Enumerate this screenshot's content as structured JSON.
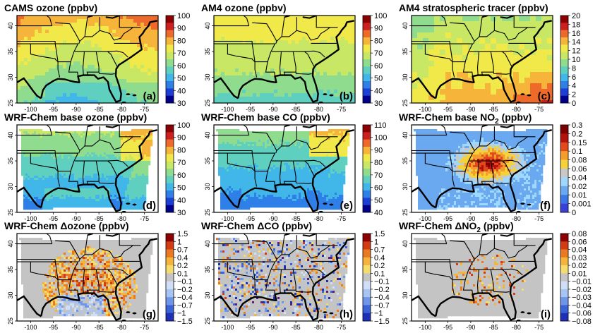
{
  "panels": [
    {
      "id": "a",
      "title": "CAMS ozone (ppbv)",
      "label": "(a)",
      "scheme": "rainbow",
      "field": "ozone_cams",
      "colorbar": {
        "ticks": [
          "100",
          "90",
          "80",
          "70",
          "60",
          "50",
          "40",
          "30"
        ]
      },
      "lon_ticks": [
        "-100",
        "-95",
        "-90",
        "-85",
        "-80",
        "-75"
      ],
      "lat_ticks": [
        "40",
        "35",
        "30",
        "25"
      ]
    },
    {
      "id": "b",
      "title": "AM4 ozone (ppbv)",
      "label": "(b)",
      "scheme": "rainbow",
      "field": "ozone_am4",
      "colorbar": {
        "ticks": [
          "100",
          "90",
          "80",
          "70",
          "60",
          "50",
          "40",
          "30"
        ]
      },
      "lon_ticks": [
        "-100",
        "-95",
        "-90",
        "-85",
        "-80",
        "-75"
      ],
      "lat_ticks": [
        "40",
        "35",
        "30",
        "25"
      ]
    },
    {
      "id": "c",
      "title": "AM4 stratospheric tracer (ppbv)",
      "label": "(c)",
      "scheme": "rainbow",
      "field": "strat",
      "colorbar": {
        "ticks": [
          "20",
          "18",
          "16",
          "14",
          "12",
          "10",
          "8",
          "6",
          "4",
          "2",
          "0"
        ]
      },
      "lon_ticks": [
        "-100",
        "-95",
        "-90",
        "-85",
        "-80",
        "-75"
      ],
      "lat_ticks": [
        "40",
        "35",
        "30",
        "25"
      ]
    },
    {
      "id": "d",
      "title": "WRF-Chem base ozone (ppbv)",
      "label": "(d)",
      "scheme": "rainbow",
      "field": "ozone_wrf",
      "colorbar": {
        "ticks": [
          "100",
          "90",
          "80",
          "70",
          "60",
          "50",
          "40",
          "30"
        ]
      },
      "lon_ticks": [
        "-100",
        "-95",
        "-90",
        "-85",
        "-80",
        "-75"
      ],
      "lat_ticks": [
        "40",
        "35",
        "30",
        "25"
      ]
    },
    {
      "id": "e",
      "title": "WRF-Chem base CO (ppbv)",
      "label": "(e)",
      "scheme": "rainbow",
      "field": "co_wrf",
      "colorbar": {
        "ticks": [
          "110",
          "100",
          "90",
          "80",
          "70",
          "60",
          "50",
          "40"
        ]
      },
      "lon_ticks": [
        "-100",
        "-95",
        "-90",
        "-85",
        "-80",
        "-75"
      ],
      "lat_ticks": [
        "40",
        "35",
        "30",
        "25"
      ]
    },
    {
      "id": "f",
      "title": "WRF-Chem base NO",
      "title_sub": "2",
      "title_tail": " (ppbv)",
      "label": "(f)",
      "scheme": "no2",
      "field": "no2_wrf",
      "colorbar": {
        "ticks": [
          "0.3",
          "0.2",
          "0.15",
          "0.1",
          "0.08",
          "0.06",
          "0.04",
          "0.02",
          "0.01",
          "0.001",
          "0"
        ]
      },
      "lon_ticks": [
        "-100",
        "-95",
        "-90",
        "-85",
        "-80",
        "-75"
      ],
      "lat_ticks": [
        "40",
        "35",
        "30",
        "25"
      ]
    },
    {
      "id": "g",
      "title": "WRF-Chem Δozone (ppbv)",
      "label": "(g)",
      "scheme": "diverge",
      "field": "d_ozone",
      "colorbar": {
        "ticks": [
          "1.5",
          "1",
          "0.7",
          "0.4",
          "0.2",
          "0.1",
          "−0.1",
          "−0.2",
          "−0.4",
          "−0.7",
          "−1",
          "−1.5"
        ]
      },
      "lon_ticks": [
        "-100",
        "-95",
        "-90",
        "-85",
        "-80",
        "-75"
      ],
      "lat_ticks": [
        "40",
        "35",
        "30",
        "25"
      ]
    },
    {
      "id": "h",
      "title": "WRF-Chem ΔCO (ppbv)",
      "label": "(h)",
      "scheme": "diverge",
      "field": "d_co",
      "colorbar": {
        "ticks": [
          "1.5",
          "1",
          "0.7",
          "0.4",
          "0.2",
          "0.1",
          "−0.1",
          "−0.2",
          "−0.4",
          "−0.7",
          "−1",
          "−1.5"
        ]
      },
      "lon_ticks": [
        "-100",
        "-95",
        "-90",
        "-85",
        "-80",
        "-75"
      ],
      "lat_ticks": [
        "40",
        "35",
        "30",
        "25"
      ]
    },
    {
      "id": "i",
      "title": "WRF-Chem ΔNO",
      "title_sub": "2",
      "title_tail": " (ppbv)",
      "label": "(i)",
      "scheme": "diverge",
      "field": "d_no2",
      "colorbar": {
        "ticks": [
          "0.08",
          "0.06",
          "0.04",
          "0.03",
          "0.02",
          "0.01",
          "−0.01",
          "−0.02",
          "−0.03",
          "−0.04",
          "−0.06",
          "−0.08"
        ]
      },
      "lon_ticks": [
        "-100",
        "-95",
        "-90",
        "-85",
        "-80",
        "-75"
      ],
      "lat_ticks": [
        "40",
        "35",
        "30",
        "25"
      ]
    }
  ],
  "colors": {
    "rainbow": [
      "#00008b",
      "#1c3fd6",
      "#2f7fe8",
      "#41b6e8",
      "#5fd0c0",
      "#8fdc8e",
      "#c8e765",
      "#f1e84a",
      "#f7b43a",
      "#ee6a2a",
      "#cc2020",
      "#8b0000"
    ],
    "no2": [
      "#f4f4f4",
      "#7a3cc8",
      "#3a40d6",
      "#3a78e8",
      "#6aa8f0",
      "#9fd8ff",
      "#c8c8c8",
      "#f6d23a",
      "#f59d2a",
      "#e24a1c",
      "#b4120c",
      "#7b0000"
    ],
    "diverge": [
      "#5a1e82",
      "#1e2fb8",
      "#3a63d6",
      "#6d96e8",
      "#a8c4f2",
      "#d0def6",
      "#c4c4c4",
      "#f6dc6a",
      "#f4b33a",
      "#ea7a22",
      "#d23b14",
      "#8b0000"
    ],
    "grey_bg": "#c4c4c4",
    "map_lines": "#000000"
  }
}
